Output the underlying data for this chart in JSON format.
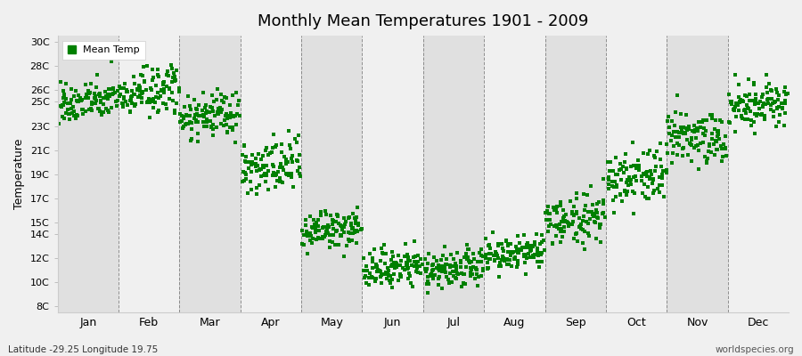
{
  "title": "Monthly Mean Temperatures 1901 - 2009",
  "ylabel": "Temperature",
  "y_labels": [
    "8C",
    "10C",
    "12C",
    "14C",
    "15C",
    "17C",
    "19C",
    "21C",
    "23C",
    "25C",
    "26C",
    "28C",
    "30C"
  ],
  "y_ticks": [
    8,
    10,
    12,
    14,
    15,
    17,
    19,
    21,
    23,
    25,
    26,
    28,
    30
  ],
  "ylim": [
    7.5,
    30.5
  ],
  "months": [
    "Jan",
    "Feb",
    "Mar",
    "Apr",
    "May",
    "Jun",
    "Jul",
    "Aug",
    "Sep",
    "Oct",
    "Nov",
    "Dec"
  ],
  "month_centers": [
    0.5,
    1.5,
    2.5,
    3.5,
    4.5,
    5.5,
    6.5,
    7.5,
    8.5,
    9.5,
    10.5,
    11.5
  ],
  "dot_color": "#008000",
  "dot_size": 6,
  "background_color": "#f0f0f0",
  "band_colors": [
    "#e0e0e0",
    "#f0f0f0"
  ],
  "grid_color": "#666666",
  "legend_label": "Mean Temp",
  "footer_left": "Latitude -29.25 Longitude 19.75",
  "footer_right": "worldspecies.org",
  "monthly_mean_temps": [
    25.0,
    25.8,
    23.8,
    19.5,
    14.3,
    11.2,
    11.0,
    12.3,
    15.2,
    18.8,
    22.0,
    24.8
  ],
  "monthly_std_temps": [
    0.8,
    1.0,
    0.9,
    1.2,
    0.8,
    0.8,
    0.8,
    0.8,
    1.0,
    1.2,
    1.2,
    0.9
  ],
  "n_years": 109,
  "seed": 42
}
